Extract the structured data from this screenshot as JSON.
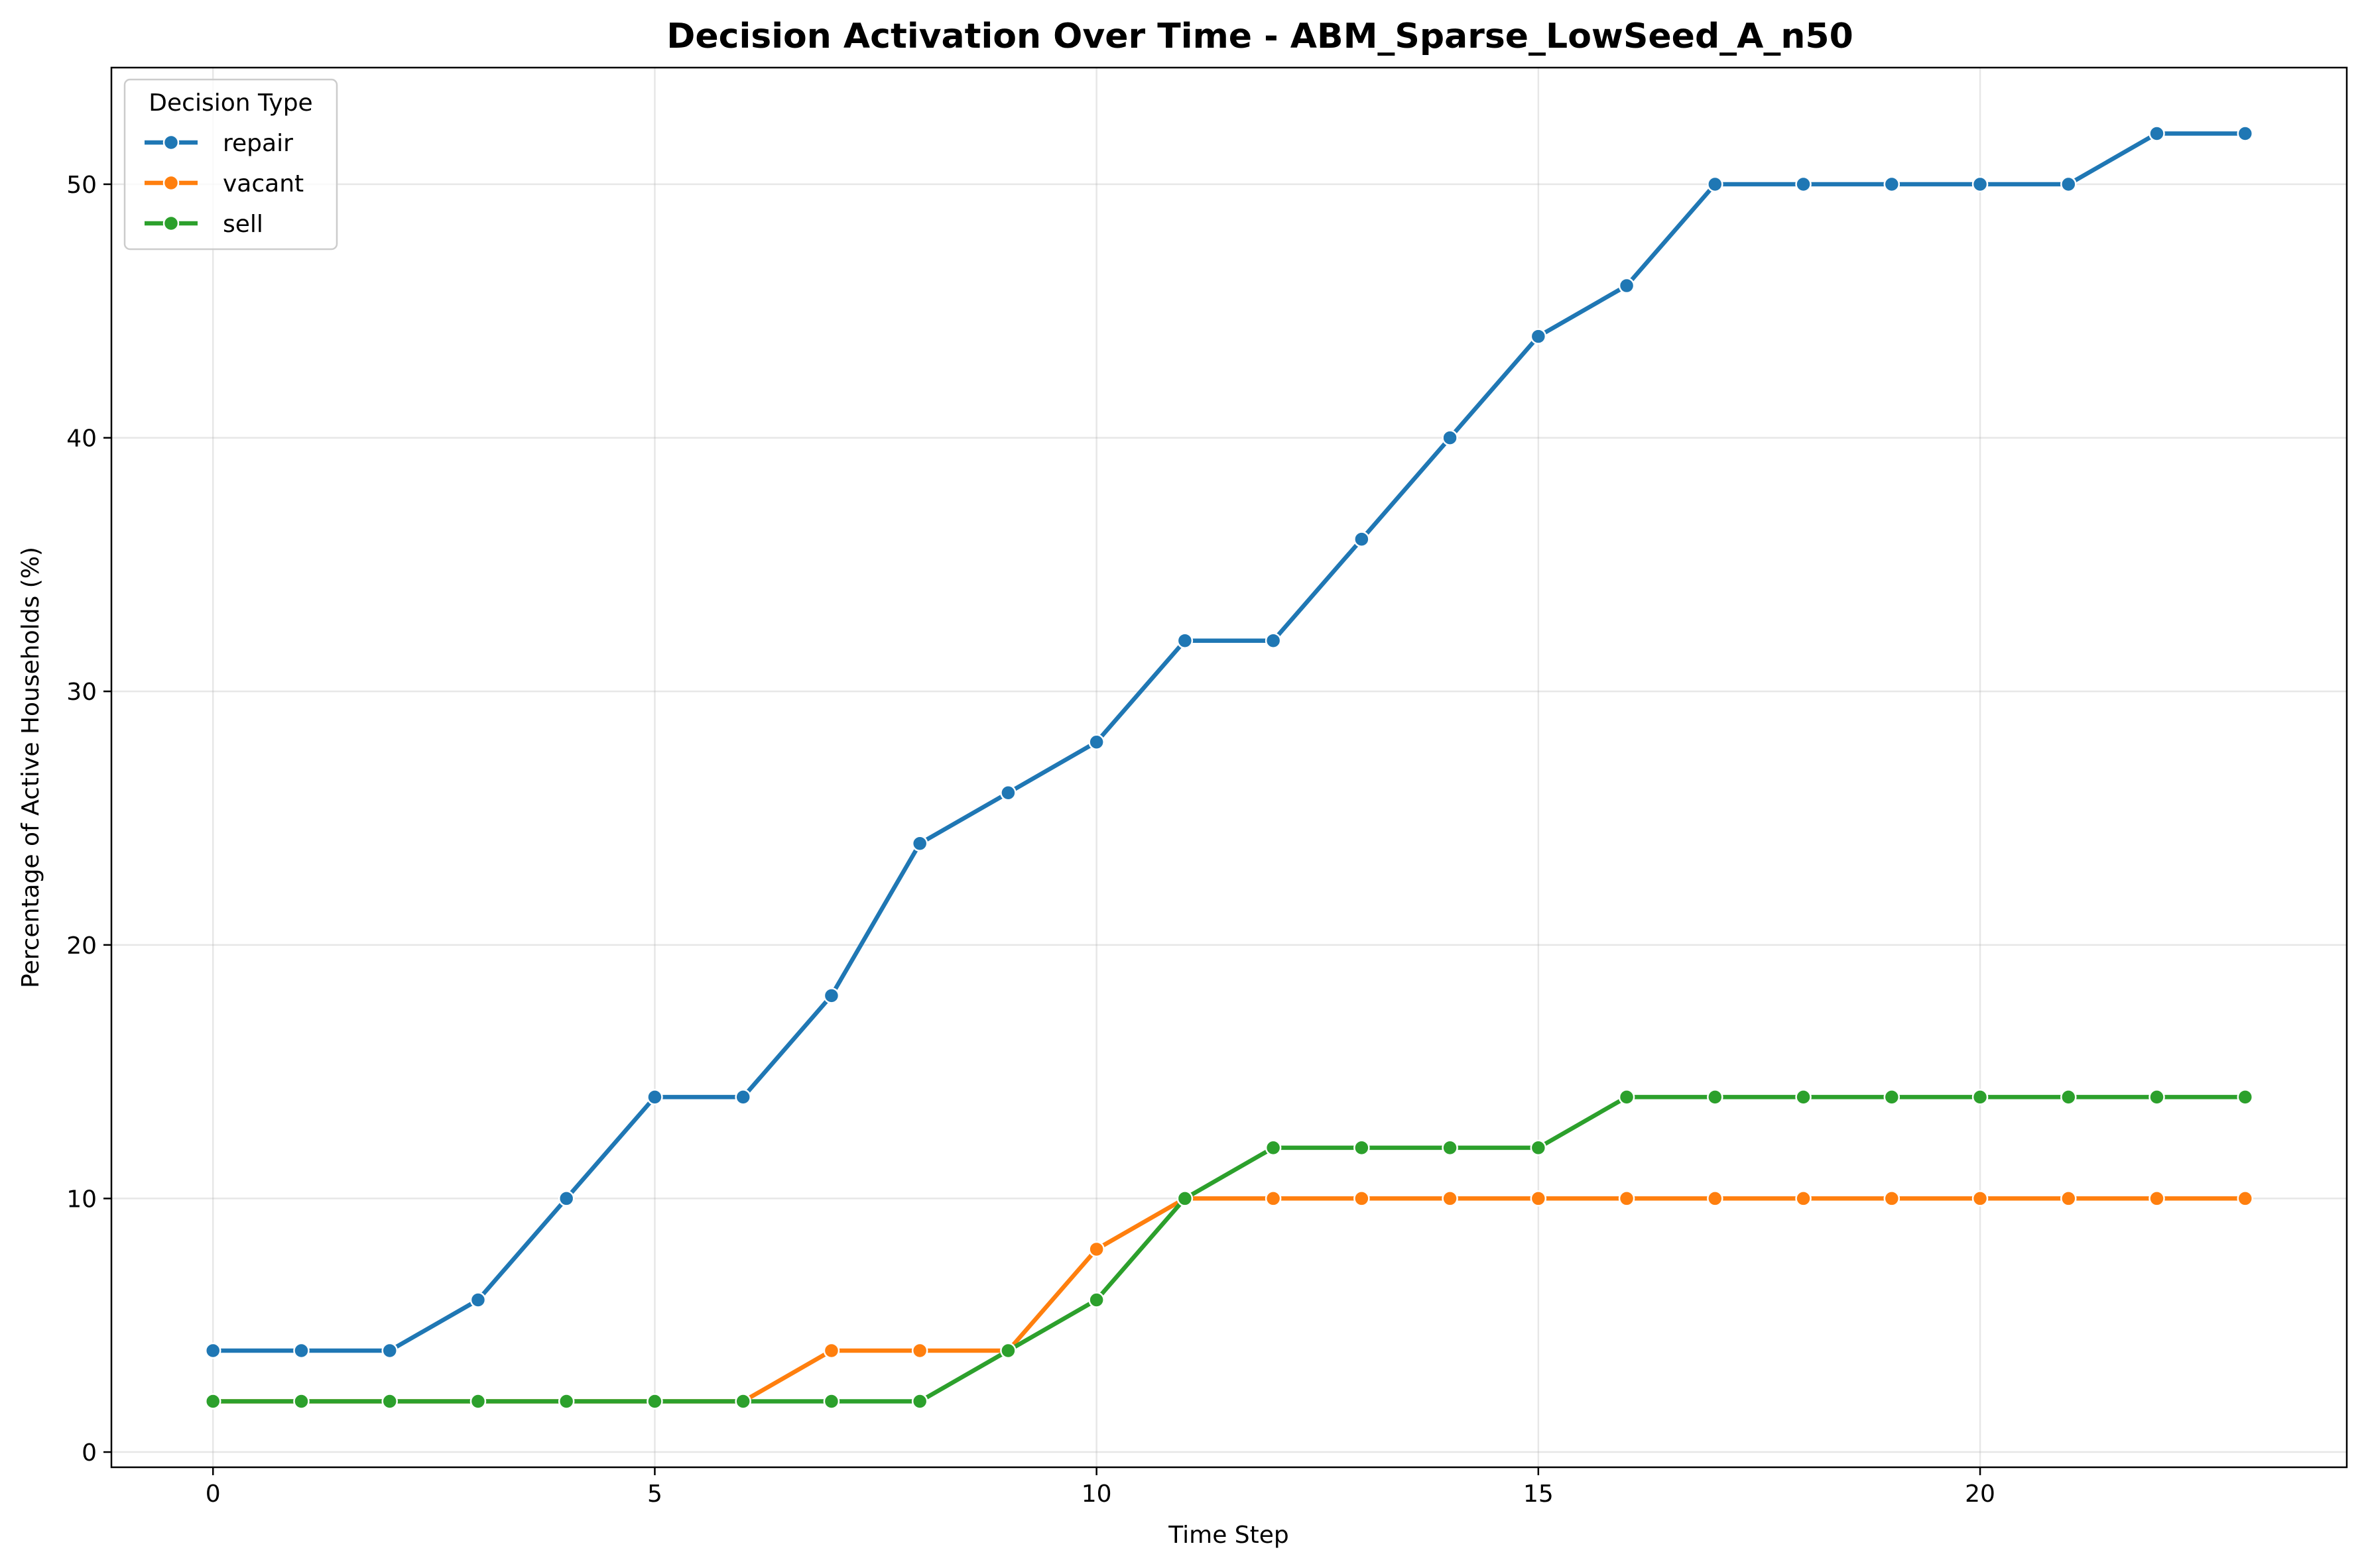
{
  "chart_data": {
    "type": "line",
    "title": "Decision Activation Over Time - ABM_Sparse_LowSeed_A_n50",
    "xlabel": "Time Step",
    "ylabel": "Percentage of Active Households (%)",
    "xlim": [
      -1.15,
      24.15
    ],
    "ylim": [
      -0.6,
      54.6
    ],
    "xticks": [
      0,
      5,
      10,
      15,
      20
    ],
    "yticks": [
      0,
      10,
      20,
      30,
      40,
      50
    ],
    "grid": true,
    "legend": {
      "title": "Decision Type",
      "placement": "upper-left"
    },
    "x": [
      0,
      1,
      2,
      3,
      4,
      5,
      6,
      7,
      8,
      9,
      10,
      11,
      12,
      13,
      14,
      15,
      16,
      17,
      18,
      19,
      20,
      21,
      22,
      23
    ],
    "series": [
      {
        "name": "repair",
        "color": "#1f77b4",
        "values": [
          4,
          4,
          4,
          6,
          10,
          14,
          14,
          18,
          24,
          26,
          28,
          32,
          32,
          36,
          40,
          44,
          46,
          50,
          50,
          50,
          50,
          50,
          52,
          52
        ]
      },
      {
        "name": "vacant",
        "color": "#ff7f0e",
        "values": [
          2,
          2,
          2,
          2,
          2,
          2,
          2,
          4,
          4,
          4,
          8,
          10,
          10,
          10,
          10,
          10,
          10,
          10,
          10,
          10,
          10,
          10,
          10,
          10
        ]
      },
      {
        "name": "sell",
        "color": "#2ca02c",
        "values": [
          2,
          2,
          2,
          2,
          2,
          2,
          2,
          2,
          2,
          4,
          6,
          10,
          12,
          12,
          12,
          12,
          14,
          14,
          14,
          14,
          14,
          14,
          14,
          14
        ]
      }
    ]
  }
}
